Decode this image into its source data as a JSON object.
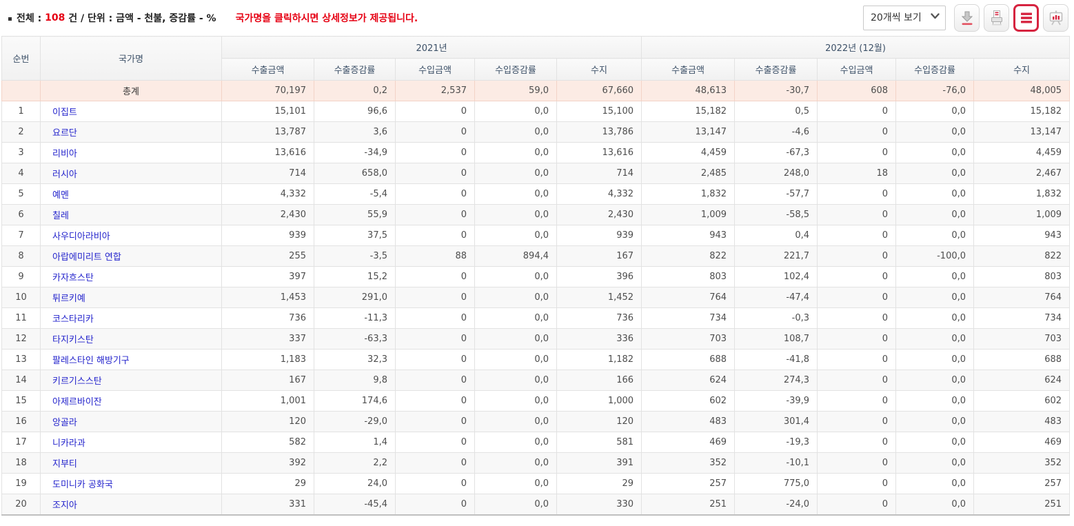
{
  "toolbar": {
    "summary": {
      "total_label": "전체 : ",
      "total_count": "108",
      "after_count": " 건 / 단위 : 금액 - 천불, 증감률 - %",
      "notice": "국가명을 클릭하시면 상세정보가 제공됩니다."
    },
    "page_size": {
      "selected": "20개씩 보기"
    },
    "buttons": [
      {
        "id": "download",
        "icon": "download-icon",
        "active": false
      },
      {
        "id": "print",
        "icon": "printer-icon",
        "active": false
      },
      {
        "id": "list-view",
        "icon": "list-icon",
        "active": true
      },
      {
        "id": "chart-view",
        "icon": "bar-chart-icon",
        "active": false
      }
    ]
  },
  "table": {
    "corner_headers": {
      "rank": "순번",
      "country": "국가명"
    },
    "year_groups": [
      "2021년",
      "2022년 (12월)"
    ],
    "sub_headers": [
      "수출금액",
      "수출증감률",
      "수입금액",
      "수입증감률",
      "수지"
    ],
    "total_row": {
      "label": "총계",
      "values": [
        "70,197",
        "0,2",
        "2,537",
        "59,0",
        "67,660",
        "48,613",
        "-30,7",
        "608",
        "-76,0",
        "48,005"
      ]
    },
    "rows": [
      {
        "rank": "1",
        "country": "이집트",
        "values": [
          "15,101",
          "96,6",
          "0",
          "0,0",
          "15,100",
          "15,182",
          "0,5",
          "0",
          "0,0",
          "15,182"
        ]
      },
      {
        "rank": "2",
        "country": "요르단",
        "values": [
          "13,787",
          "3,6",
          "0",
          "0,0",
          "13,786",
          "13,147",
          "-4,6",
          "0",
          "0,0",
          "13,147"
        ]
      },
      {
        "rank": "3",
        "country": "리비아",
        "values": [
          "13,616",
          "-34,9",
          "0",
          "0,0",
          "13,616",
          "4,459",
          "-67,3",
          "0",
          "0,0",
          "4,459"
        ]
      },
      {
        "rank": "4",
        "country": "러시아",
        "values": [
          "714",
          "658,0",
          "0",
          "0,0",
          "714",
          "2,485",
          "248,0",
          "18",
          "0,0",
          "2,467"
        ]
      },
      {
        "rank": "5",
        "country": "예멘",
        "values": [
          "4,332",
          "-5,4",
          "0",
          "0,0",
          "4,332",
          "1,832",
          "-57,7",
          "0",
          "0,0",
          "1,832"
        ]
      },
      {
        "rank": "6",
        "country": "칠레",
        "values": [
          "2,430",
          "55,9",
          "0",
          "0,0",
          "2,430",
          "1,009",
          "-58,5",
          "0",
          "0,0",
          "1,009"
        ]
      },
      {
        "rank": "7",
        "country": "사우디아라비아",
        "values": [
          "939",
          "37,5",
          "0",
          "0,0",
          "939",
          "943",
          "0,4",
          "0",
          "0,0",
          "943"
        ]
      },
      {
        "rank": "8",
        "country": "아랍에미리트 연합",
        "values": [
          "255",
          "-3,5",
          "88",
          "894,4",
          "167",
          "822",
          "221,7",
          "0",
          "-100,0",
          "822"
        ]
      },
      {
        "rank": "9",
        "country": "카자흐스탄",
        "values": [
          "397",
          "15,2",
          "0",
          "0,0",
          "396",
          "803",
          "102,4",
          "0",
          "0,0",
          "803"
        ]
      },
      {
        "rank": "10",
        "country": "튀르키예",
        "values": [
          "1,453",
          "291,0",
          "0",
          "0,0",
          "1,452",
          "764",
          "-47,4",
          "0",
          "0,0",
          "764"
        ]
      },
      {
        "rank": "11",
        "country": "코스타리카",
        "values": [
          "736",
          "-11,3",
          "0",
          "0,0",
          "736",
          "734",
          "-0,3",
          "0",
          "0,0",
          "734"
        ]
      },
      {
        "rank": "12",
        "country": "타지키스탄",
        "values": [
          "337",
          "-63,3",
          "0",
          "0,0",
          "336",
          "703",
          "108,7",
          "0",
          "0,0",
          "703"
        ]
      },
      {
        "rank": "13",
        "country": "팔레스타인 해방기구",
        "values": [
          "1,183",
          "32,3",
          "0",
          "0,0",
          "1,182",
          "688",
          "-41,8",
          "0",
          "0,0",
          "688"
        ]
      },
      {
        "rank": "14",
        "country": "키르기스스탄",
        "values": [
          "167",
          "9,8",
          "0",
          "0,0",
          "166",
          "624",
          "274,3",
          "0",
          "0,0",
          "624"
        ]
      },
      {
        "rank": "15",
        "country": "아제르바이잔",
        "values": [
          "1,001",
          "174,6",
          "0",
          "0,0",
          "1,000",
          "602",
          "-39,9",
          "0",
          "0,0",
          "602"
        ]
      },
      {
        "rank": "16",
        "country": "앙골라",
        "values": [
          "120",
          "-29,0",
          "0",
          "0,0",
          "120",
          "483",
          "301,4",
          "0",
          "0,0",
          "483"
        ]
      },
      {
        "rank": "17",
        "country": "니카라과",
        "values": [
          "582",
          "1,4",
          "0",
          "0,0",
          "581",
          "469",
          "-19,3",
          "0",
          "0,0",
          "469"
        ]
      },
      {
        "rank": "18",
        "country": "지부티",
        "values": [
          "392",
          "2,2",
          "0",
          "0,0",
          "391",
          "352",
          "-10,1",
          "0",
          "0,0",
          "352"
        ]
      },
      {
        "rank": "19",
        "country": "도미니카 공화국",
        "values": [
          "29",
          "24,0",
          "0",
          "0,0",
          "29",
          "257",
          "775,0",
          "0",
          "0,0",
          "257"
        ]
      },
      {
        "rank": "20",
        "country": "조지아",
        "values": [
          "331",
          "-45,4",
          "0",
          "0,0",
          "330",
          "251",
          "-24,0",
          "0",
          "0,0",
          "251"
        ]
      }
    ]
  },
  "colors": {
    "accent_red": "#e60013",
    "icon_red": "#d6233f",
    "link_blue": "#2323cc",
    "header_text": "#3d5168",
    "total_row_bg": "#fcebe4"
  }
}
